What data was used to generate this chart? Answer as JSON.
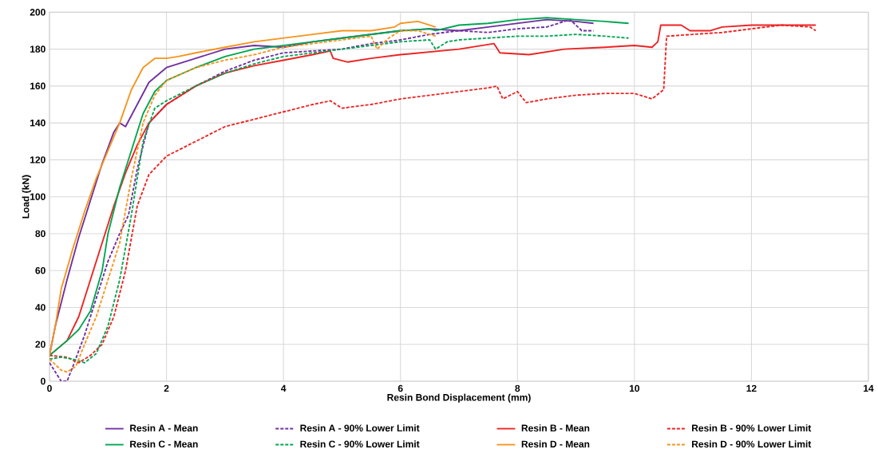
{
  "chart_data": {
    "type": "line",
    "xlabel": "Resin Bond Displacement (mm)",
    "ylabel": "Load (kN)",
    "xlim": [
      0,
      14
    ],
    "xticks": [
      0,
      2,
      4,
      6,
      8,
      10,
      12,
      14
    ],
    "ylim": [
      0,
      200
    ],
    "yticks": [
      0,
      20,
      40,
      60,
      80,
      100,
      120,
      140,
      160,
      180,
      200
    ],
    "grid": true,
    "legend": "bottom",
    "series": [
      {
        "name": "Resin A - Mean",
        "color": "#7030a0",
        "line_style": "solid",
        "x": [
          0,
          0.1,
          0.3,
          0.5,
          0.7,
          0.9,
          1.1,
          1.2,
          1.3,
          1.5,
          1.7,
          2.0,
          2.5,
          3,
          3.5,
          4,
          4.5,
          5,
          5.5,
          6,
          6.5,
          7,
          7.5,
          8,
          8.5,
          9,
          9.3
        ],
        "values": [
          14,
          30,
          55,
          78,
          98,
          118,
          135,
          140,
          138,
          150,
          162,
          170,
          175,
          180,
          182,
          181,
          184,
          186,
          188,
          190,
          191,
          190,
          192,
          194,
          196,
          195,
          194
        ]
      },
      {
        "name": "Resin A - 90% Lower Limit",
        "color": "#7030a0",
        "line_style": "dashed",
        "x": [
          0,
          0.1,
          0.2,
          0.3,
          0.4,
          0.6,
          0.8,
          1.0,
          1.2,
          1.35,
          1.5,
          1.7,
          2.0,
          2.5,
          3,
          3.5,
          4,
          4.5,
          5,
          5.5,
          6,
          6.5,
          7,
          7.5,
          8,
          8.5,
          8.9,
          9.1,
          9.3
        ],
        "values": [
          10,
          5,
          0,
          0,
          8,
          25,
          45,
          65,
          80,
          90,
          115,
          140,
          150,
          160,
          168,
          174,
          178,
          179,
          180,
          183,
          185,
          188,
          190,
          189,
          191,
          192,
          196,
          190,
          190
        ]
      },
      {
        "name": "Resin B - Mean",
        "color": "#ee2222",
        "line_style": "solid",
        "x": [
          0,
          0.3,
          0.5,
          0.7,
          0.9,
          1.1,
          1.3,
          1.5,
          1.7,
          2,
          2.5,
          3,
          3.5,
          4,
          4.5,
          4.8,
          4.85,
          5.1,
          5.5,
          6,
          7,
          7.6,
          7.7,
          8.2,
          8.8,
          9.5,
          10,
          10.3,
          10.4,
          10.45,
          10.8,
          10.95,
          11.3,
          11.5,
          12,
          12.5,
          13.1
        ],
        "values": [
          14,
          22,
          35,
          55,
          75,
          95,
          113,
          128,
          140,
          150,
          160,
          167,
          171,
          174,
          177,
          179,
          175,
          173,
          175,
          177,
          180,
          183,
          178,
          177,
          180,
          181,
          182,
          181,
          184,
          193,
          193,
          190,
          190,
          192,
          193,
          193,
          193
        ]
      },
      {
        "name": "Resin B - 90% Lower Limit",
        "color": "#ee2222",
        "line_style": "dashed",
        "x": [
          0,
          0.3,
          0.5,
          0.7,
          0.9,
          1.1,
          1.3,
          1.5,
          1.7,
          2,
          2.5,
          3,
          3.5,
          4,
          4.5,
          4.8,
          5,
          5.5,
          6,
          6.5,
          7,
          7.5,
          7.65,
          7.75,
          8,
          8.15,
          8.5,
          9,
          9.5,
          10,
          10.3,
          10.5,
          10.55,
          11,
          11.5,
          12,
          12.5,
          13,
          13.1
        ],
        "values": [
          14,
          13,
          10,
          14,
          20,
          35,
          60,
          95,
          112,
          122,
          130,
          138,
          142,
          146,
          150,
          152,
          148,
          150,
          153,
          155,
          157,
          159,
          160,
          153,
          157,
          151,
          153,
          155,
          156,
          156,
          153,
          158,
          187,
          188,
          189,
          191,
          193,
          192,
          190
        ]
      },
      {
        "name": "Resin C - Mean",
        "color": "#00a651",
        "line_style": "solid",
        "x": [
          0,
          0.3,
          0.5,
          0.7,
          0.9,
          1.0,
          1.2,
          1.4,
          1.6,
          1.8,
          2,
          2.5,
          3,
          3.5,
          4,
          4.5,
          5,
          5.5,
          6,
          6.5,
          6.6,
          7,
          7.5,
          8,
          8.5,
          9,
          9.5,
          9.9
        ],
        "values": [
          14,
          22,
          28,
          38,
          60,
          80,
          105,
          125,
          145,
          157,
          163,
          170,
          176,
          180,
          182,
          184,
          186,
          188,
          190,
          191,
          190,
          193,
          194,
          196,
          197,
          196,
          195,
          194
        ]
      },
      {
        "name": "Resin C - 90% Lower Limit",
        "color": "#00a651",
        "line_style": "dashed",
        "x": [
          0,
          0.2,
          0.4,
          0.6,
          0.8,
          1.0,
          1.2,
          1.4,
          1.6,
          1.8,
          2,
          2.5,
          3,
          3.5,
          4,
          4.5,
          5,
          5.5,
          6,
          6.5,
          6.6,
          6.8,
          7,
          7.5,
          8,
          8.5,
          9,
          9.5,
          9.9
        ],
        "values": [
          12,
          13,
          12,
          10,
          15,
          30,
          55,
          90,
          130,
          148,
          152,
          160,
          167,
          172,
          176,
          178,
          180,
          182,
          184,
          185,
          180,
          184,
          185,
          186,
          187,
          187,
          188,
          187,
          186
        ]
      },
      {
        "name": "Resin D - Mean",
        "color": "#f7941d",
        "line_style": "solid",
        "x": [
          0,
          0.1,
          0.2,
          0.4,
          0.6,
          0.8,
          1.0,
          1.2,
          1.4,
          1.6,
          1.8,
          2,
          2.2,
          2.5,
          3,
          3.5,
          4,
          4.5,
          5,
          5.5,
          5.9,
          6,
          6.3,
          6.6
        ],
        "values": [
          14,
          30,
          50,
          72,
          92,
          110,
          125,
          140,
          158,
          170,
          175,
          175,
          176,
          178,
          181,
          184,
          186,
          188,
          190,
          190,
          192,
          194,
          195,
          192
        ]
      },
      {
        "name": "Resin D - 90% Lower Limit",
        "color": "#f7941d",
        "line_style": "dashed",
        "x": [
          0,
          0.2,
          0.3,
          0.45,
          0.6,
          0.8,
          1.0,
          1.2,
          1.4,
          1.6,
          1.8,
          2,
          2.5,
          3,
          3.5,
          4,
          4.5,
          5,
          5.5,
          5.6,
          5.8,
          6,
          6.3,
          6.6
        ],
        "values": [
          12,
          6,
          5,
          8,
          20,
          35,
          55,
          75,
          110,
          140,
          155,
          163,
          170,
          174,
          177,
          181,
          183,
          185,
          187,
          180,
          186,
          190,
          190,
          187
        ]
      }
    ]
  }
}
